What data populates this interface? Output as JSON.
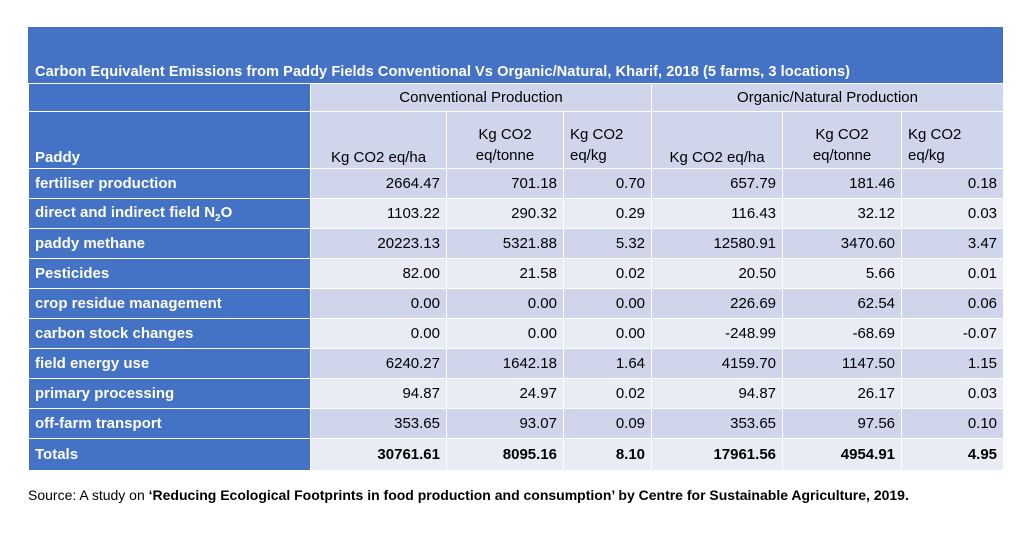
{
  "title": "Carbon Equivalent Emissions from Paddy Fields Conventional Vs Organic/Natural, Kharif, 2018  (5 farms, 3 locations)",
  "groups": [
    "Conventional Production",
    "Organic/Natural Production"
  ],
  "row_header_label": "Paddy",
  "columns": [
    "Kg CO2 eq/ha",
    "Kg CO2 eq/tonne",
    "Kg CO2 eq/kg",
    "Kg CO2 eq/ha",
    "Kg CO2 eq/tonne",
    "Kg CO2 eq/kg"
  ],
  "column_lines": [
    [
      "Kg CO2 eq/ha"
    ],
    [
      "Kg CO2",
      "eq/tonne"
    ],
    [
      "Kg CO2",
      "eq/kg"
    ],
    [
      "Kg CO2 eq/ha"
    ],
    [
      "Kg CO2",
      "eq/tonne"
    ],
    [
      "Kg CO2",
      "eq/kg"
    ]
  ],
  "rows": [
    {
      "label": "fertiliser production",
      "values": [
        "2664.47",
        "701.18",
        "0.70",
        "657.79",
        "181.46",
        "0.18"
      ]
    },
    {
      "label": "direct and indirect field N",
      "label_sub": "2",
      "label_suffix": "O",
      "values": [
        "1103.22",
        "290.32",
        "0.29",
        "116.43",
        "32.12",
        "0.03"
      ]
    },
    {
      "label": "paddy methane",
      "values": [
        "20223.13",
        "5321.88",
        "5.32",
        "12580.91",
        "3470.60",
        "3.47"
      ]
    },
    {
      "label": "Pesticides",
      "values": [
        "82.00",
        "21.58",
        "0.02",
        "20.50",
        "5.66",
        "0.01"
      ]
    },
    {
      "label": "crop residue management",
      "values": [
        "0.00",
        "0.00",
        "0.00",
        "226.69",
        "62.54",
        "0.06"
      ]
    },
    {
      "label": "carbon stock changes",
      "values": [
        "0.00",
        "0.00",
        "0.00",
        "-248.99",
        "-68.69",
        "-0.07"
      ]
    },
    {
      "label": "field energy use",
      "values": [
        "6240.27",
        "1642.18",
        "1.64",
        "4159.70",
        "1147.50",
        "1.15"
      ]
    },
    {
      "label": "primary processing",
      "values": [
        "94.87",
        "24.97",
        "0.02",
        "94.87",
        "26.17",
        "0.03"
      ]
    },
    {
      "label": "off-farm transport",
      "values": [
        "353.65",
        "93.07",
        "0.09",
        "353.65",
        "97.56",
        "0.10"
      ]
    }
  ],
  "totals": {
    "label": "Totals",
    "values": [
      "30761.61",
      "8095.16",
      "8.10",
      "17961.56",
      "4954.91",
      "4.95"
    ]
  },
  "source": {
    "prefix": "Source:  A study on ",
    "bold": "‘Reducing Ecological Footprints in food production and consumption’ by Centre for Sustainable Agriculture, 2019."
  },
  "colors": {
    "header_blue": "#4472C4",
    "band_dark": "#CFD5EA",
    "band_light": "#E9EBF5"
  }
}
